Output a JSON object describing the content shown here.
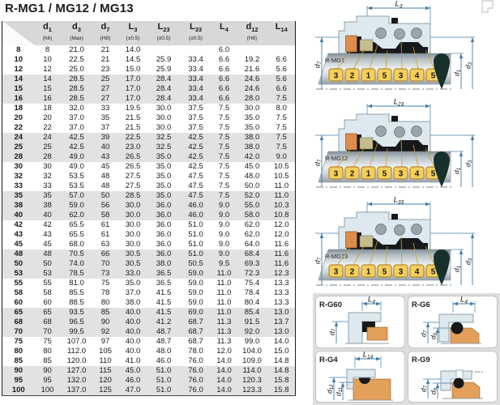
{
  "title": "R-MG1 / MG12 / MG13",
  "table": {
    "columns": [
      {
        "main": "",
        "sub": "",
        "note": ""
      },
      {
        "main": "d",
        "sub": "1",
        "note": "(h6)"
      },
      {
        "main": "d",
        "sub": "3",
        "note": "(Max)"
      },
      {
        "main": "d",
        "sub": "7",
        "note": "(H8)"
      },
      {
        "main": "L",
        "sub": "3",
        "note": "(±0.5)"
      },
      {
        "main": "L",
        "sub": "23",
        "note": "(±0.5)"
      },
      {
        "main": "L",
        "sub": "33",
        "note": "(±0.5)"
      },
      {
        "main": "L",
        "sub": "4",
        "note": ""
      },
      {
        "main": "d",
        "sub": "12",
        "note": "(H8)"
      },
      {
        "main": "L",
        "sub": "14",
        "note": ""
      }
    ],
    "rows": [
      [
        "8",
        "8",
        "21.0",
        "21",
        "14.0",
        "",
        "",
        "6.0",
        "",
        ""
      ],
      [
        "10",
        "10",
        "22.5",
        "21",
        "14.5",
        "25.9",
        "33.4",
        "6.6",
        "19.2",
        "6.6"
      ],
      [
        "12",
        "12",
        "25.0",
        "23",
        "15.0",
        "25.9",
        "33.4",
        "6.6",
        "21.6",
        "5.6"
      ],
      [
        "14",
        "14",
        "28.5",
        "25",
        "17.0",
        "28.4",
        "33.4",
        "6.6",
        "24.6",
        "5.6"
      ],
      [
        "15",
        "15",
        "28.5",
        "27",
        "17.0",
        "28.4",
        "33.4",
        "6.6",
        "24.6",
        "6.6"
      ],
      [
        "16",
        "16",
        "28.5",
        "27",
        "17.0",
        "28.4",
        "33.4",
        "6.6",
        "28.0",
        "7.5"
      ],
      [
        "18",
        "18",
        "32.0",
        "33",
        "19.5",
        "30.0",
        "37.5",
        "7.5",
        "30.0",
        "8.0"
      ],
      [
        "20",
        "20",
        "37.0",
        "35",
        "21.5",
        "30.0",
        "37.5",
        "7.5",
        "35.0",
        "7.5"
      ],
      [
        "22",
        "22",
        "37.0",
        "37",
        "21.5",
        "30.0",
        "37.5",
        "7.5",
        "35.0",
        "7.5"
      ],
      [
        "24",
        "24",
        "42.5",
        "39",
        "22.5",
        "32.5",
        "42.5",
        "7.5",
        "38.0",
        "7.5"
      ],
      [
        "25",
        "25",
        "42.5",
        "40",
        "23.0",
        "32.5",
        "42.5",
        "7.5",
        "38.0",
        "7.5"
      ],
      [
        "28",
        "28",
        "49.0",
        "43",
        "26.5",
        "35.0",
        "42.5",
        "7.5",
        "42.0",
        "9.0"
      ],
      [
        "30",
        "30",
        "49.0",
        "45",
        "26.5",
        "35.0",
        "42.5",
        "7.5",
        "45.0",
        "10.5"
      ],
      [
        "32",
        "32",
        "53.5",
        "48",
        "27.5",
        "35.0",
        "47.5",
        "7.5",
        "48.0",
        "10.5"
      ],
      [
        "33",
        "33",
        "53.5",
        "48",
        "27.5",
        "35.0",
        "47.5",
        "7.5",
        "50.0",
        "11.0"
      ],
      [
        "35",
        "35",
        "57.0",
        "50",
        "28.5",
        "35.0",
        "47.5",
        "7.5",
        "52.0",
        "11.0"
      ],
      [
        "38",
        "38",
        "59.0",
        "56",
        "30.0",
        "36.0",
        "46.0",
        "9.0",
        "55.0",
        "10.3"
      ],
      [
        "40",
        "40",
        "62.0",
        "58",
        "30.0",
        "36.0",
        "46.0",
        "9.0",
        "58.0",
        "10.8"
      ],
      [
        "42",
        "42",
        "65.5",
        "61",
        "30.0",
        "36.0",
        "51.0",
        "9.0",
        "62.0",
        "12.0"
      ],
      [
        "43",
        "43",
        "65.5",
        "61",
        "30.0",
        "36.0",
        "51.0",
        "9.0",
        "62.0",
        "12.0"
      ],
      [
        "45",
        "45",
        "68.0",
        "63",
        "30.0",
        "36.0",
        "51.0",
        "9.0",
        "64.0",
        "11.6"
      ],
      [
        "48",
        "48",
        "70.5",
        "66",
        "30.5",
        "36.0",
        "51.0",
        "9.0",
        "68.4",
        "11.6"
      ],
      [
        "50",
        "50",
        "74.0",
        "70",
        "30.5",
        "38.0",
        "50.5",
        "9.5",
        "69.3",
        "11.6"
      ],
      [
        "53",
        "53",
        "78.5",
        "73",
        "33.0",
        "36.5",
        "59.0",
        "11.0",
        "72.3",
        "12.3"
      ],
      [
        "55",
        "55",
        "81.0",
        "75",
        "35.0",
        "36.5",
        "59.0",
        "11.0",
        "75.4",
        "13.3"
      ],
      [
        "58",
        "58",
        "85.5",
        "78",
        "37.0",
        "41.5",
        "59.0",
        "11.0",
        "78.4",
        "13.3"
      ],
      [
        "60",
        "60",
        "88.5",
        "80",
        "38.0",
        "41.5",
        "59.0",
        "11.0",
        "80.4",
        "13.3"
      ],
      [
        "65",
        "65",
        "93.5",
        "85",
        "40.0",
        "41.5",
        "69.0",
        "11.0",
        "85.4",
        "13.0"
      ],
      [
        "68",
        "68",
        "96.5",
        "90",
        "40.0",
        "41.2",
        "68.7",
        "11.3",
        "91.5",
        "13.7"
      ],
      [
        "70",
        "70",
        "99.5",
        "92",
        "40.0",
        "48.7",
        "68.7",
        "11.3",
        "92.0",
        "13.0"
      ],
      [
        "75",
        "75",
        "107.0",
        "97",
        "40.0",
        "48.7",
        "68.7",
        "11.3",
        "99.0",
        "14.0"
      ],
      [
        "80",
        "80",
        "112.0",
        "105",
        "40.0",
        "48.0",
        "78.0",
        "12.0",
        "104.0",
        "15.0"
      ],
      [
        "85",
        "85",
        "120.0",
        "110",
        "41.0",
        "46.0",
        "76.0",
        "14.0",
        "109.0",
        "14.8"
      ],
      [
        "90",
        "90",
        "127.0",
        "115",
        "45.0",
        "51.0",
        "76.0",
        "14.0",
        "114.0",
        "14.8"
      ],
      [
        "95",
        "95",
        "132.0",
        "120",
        "46.0",
        "51.0",
        "76.0",
        "14.0",
        "120.3",
        "15.8"
      ],
      [
        "100",
        "100",
        "137.0",
        "125",
        "47.0",
        "51.0",
        "76.0",
        "14.0",
        "123.3",
        "15.8"
      ]
    ]
  },
  "diagrams": {
    "seals": [
      {
        "label": "R-MG1",
        "dim_main": "L",
        "dim_sub": "3",
        "parts": [
          "3",
          "2",
          "1",
          "5",
          "3",
          "4",
          "5"
        ],
        "left_dim_main": "d",
        "left_dim_sub": "7",
        "right_dims": [
          {
            "main": "d",
            "sub": "1"
          },
          {
            "main": "d",
            "sub": "3"
          }
        ]
      },
      {
        "label": "R-MG12",
        "dim_main": "L",
        "dim_sub": "23",
        "parts": [
          "3",
          "2",
          "1",
          "5",
          "3",
          "4",
          "5"
        ],
        "left_dim_main": "d",
        "left_dim_sub": "7",
        "right_dims": [
          {
            "main": "d",
            "sub": "1"
          },
          {
            "main": "d",
            "sub": "3"
          }
        ]
      },
      {
        "label": "R-MG13",
        "dim_main": "L",
        "dim_sub": "33",
        "parts": [
          "3",
          "2",
          "1",
          "5",
          "3",
          "4",
          "5"
        ],
        "left_dim_main": "d",
        "left_dim_sub": "7",
        "right_dims": [
          {
            "main": "d",
            "sub": "1"
          },
          {
            "main": "d",
            "sub": "3"
          }
        ]
      }
    ],
    "seats": [
      {
        "label": "R-G60",
        "variant": "g60",
        "top_dim_main": "L",
        "top_dim_sub": "4",
        "left_dims": [
          {
            "main": "d",
            "sub": "7"
          }
        ]
      },
      {
        "label": "R-G6",
        "variant": "g6",
        "top_dim_main": "L",
        "top_dim_sub": "4",
        "left_dims": [
          {
            "main": "d",
            "sub": "7"
          },
          {
            "main": "d",
            "sub": "6"
          }
        ]
      },
      {
        "label": "R-G4",
        "variant": "g4",
        "top_dim_main": "L",
        "top_dim_sub": "14",
        "left_dims": [
          {
            "main": "d",
            "sub": "12"
          },
          {
            "main": "d",
            "sub": "11"
          }
        ]
      },
      {
        "label": "R-G9",
        "variant": "g9",
        "top_dim_main": "",
        "top_dim_sub": "",
        "left_dims": [
          {
            "main": "d",
            "sub": "7"
          },
          {
            "main": "d",
            "sub": "6"
          }
        ]
      }
    ]
  },
  "colors": {
    "header_bg": "#d8d8d8",
    "row_band_bg": "#e2e2e2",
    "dimension_blue": "#3f7fae",
    "housing_blue": "#dde8ef",
    "housing_stroke": "#8fa0aa",
    "seal_black": "#17181a",
    "spring_orange": "#dd8c4c",
    "seat_orange": "#e2a express05a",
    "olive": "#c6bd8e",
    "tag_yellow": "#f3cf5e",
    "tag_stroke": "#b9882f",
    "leader_gold": "#c9a22c",
    "shaft_dark": "#84909a",
    "shaft_light": "#eef1f2",
    "teal_drop": "#16302c",
    "centerline_gray": "#555555"
  }
}
